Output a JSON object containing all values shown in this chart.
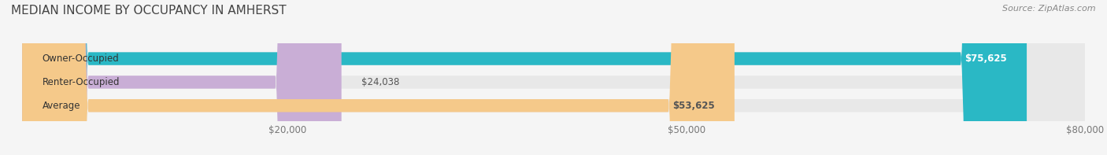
{
  "title": "MEDIAN INCOME BY OCCUPANCY IN AMHERST",
  "source": "Source: ZipAtlas.com",
  "categories": [
    "Owner-Occupied",
    "Renter-Occupied",
    "Average"
  ],
  "values": [
    75625,
    24038,
    53625
  ],
  "bar_colors": [
    "#2ab8c5",
    "#c9aed6",
    "#f5c98a"
  ],
  "label_colors": [
    "#ffffff",
    "#555555",
    "#555555"
  ],
  "value_labels": [
    "$75,625",
    "$24,038",
    "$53,625"
  ],
  "xlim": [
    0,
    80000
  ],
  "xticks": [
    20000,
    50000,
    80000
  ],
  "xtick_labels": [
    "$20,000",
    "$50,000",
    "$80,000"
  ],
  "bar_height": 0.55,
  "bg_color": "#f5f5f5",
  "bar_bg_color": "#e8e8e8",
  "title_fontsize": 11,
  "label_fontsize": 8.5,
  "value_fontsize": 8.5,
  "source_fontsize": 8
}
